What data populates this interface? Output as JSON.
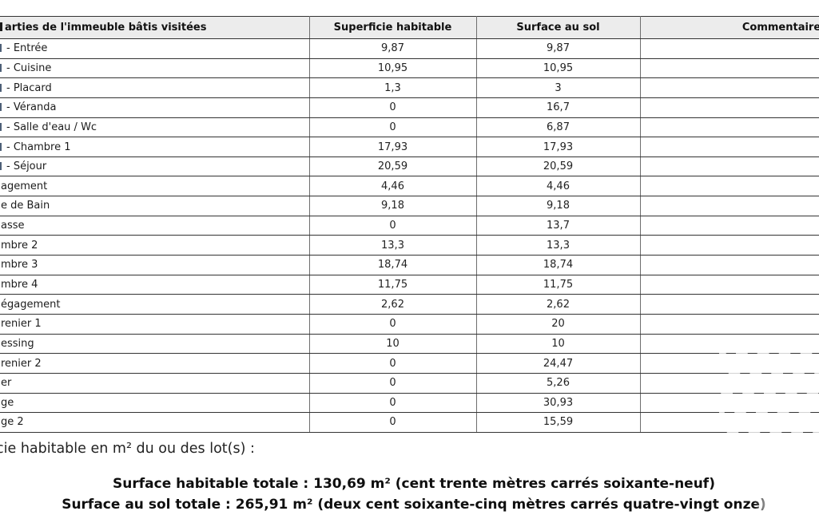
{
  "table": {
    "headers": {
      "parts": "arties de l'immeuble bâtis visitées",
      "habitable": "Superficie habitable",
      "sol": "Surface au sol",
      "comment": "Commentaire"
    },
    "rows": [
      {
        "label": "- Entrée",
        "cut": true,
        "habitable": "9,87",
        "sol": "9,87"
      },
      {
        "label": "- Cuisine",
        "cut": true,
        "habitable": "10,95",
        "sol": "10,95"
      },
      {
        "label": "- Placard",
        "cut": true,
        "habitable": "1,3",
        "sol": "3"
      },
      {
        "label": "- Véranda",
        "cut": true,
        "habitable": "0",
        "sol": "16,7"
      },
      {
        "label": "- Salle d'eau / Wc",
        "cut": true,
        "habitable": "0",
        "sol": "6,87"
      },
      {
        "label": "- Chambre 1",
        "cut": true,
        "habitable": "17,93",
        "sol": "17,93"
      },
      {
        "label": "- Séjour",
        "cut": true,
        "habitable": "20,59",
        "sol": "20,59"
      },
      {
        "label": "agement",
        "cut": false,
        "habitable": "4,46",
        "sol": "4,46"
      },
      {
        "label": "e de Bain",
        "cut": false,
        "habitable": "9,18",
        "sol": "9,18"
      },
      {
        "label": "asse",
        "cut": false,
        "habitable": "0",
        "sol": "13,7"
      },
      {
        "label": "mbre 2",
        "cut": false,
        "habitable": "13,3",
        "sol": "13,3"
      },
      {
        "label": "mbre 3",
        "cut": false,
        "habitable": "18,74",
        "sol": "18,74"
      },
      {
        "label": "mbre 4",
        "cut": false,
        "habitable": "11,75",
        "sol": "11,75"
      },
      {
        "label": "égagement",
        "cut": false,
        "habitable": "2,62",
        "sol": "2,62"
      },
      {
        "label": "renier 1",
        "cut": false,
        "habitable": "0",
        "sol": "20"
      },
      {
        "label": "essing",
        "cut": false,
        "habitable": "10",
        "sol": "10"
      },
      {
        "label": "renier 2",
        "cut": false,
        "habitable": "0",
        "sol": "24,47"
      },
      {
        "label": "er",
        "cut": false,
        "habitable": "0",
        "sol": "5,26"
      },
      {
        "label": "ge",
        "cut": false,
        "habitable": "0",
        "sol": "30,93"
      },
      {
        "label": "ge 2",
        "cut": false,
        "habitable": "0",
        "sol": "15,59"
      }
    ]
  },
  "footer": {
    "intro": "cie habitable en m² du ou des lot(s) :",
    "total_habitable": "Surface habitable totale : 130,69 m² (cent trente mètres carrés soixante-neuf)",
    "total_sol": "Surface au sol totale : 265,91 m² (deux cent soixante-cinq mètres carrés quatre-vingt onze)"
  },
  "colors": {
    "header_bg": "#ececec",
    "border_dark": "#333333",
    "border_light": "#6e6e6e",
    "text": "#1c1c1c"
  }
}
